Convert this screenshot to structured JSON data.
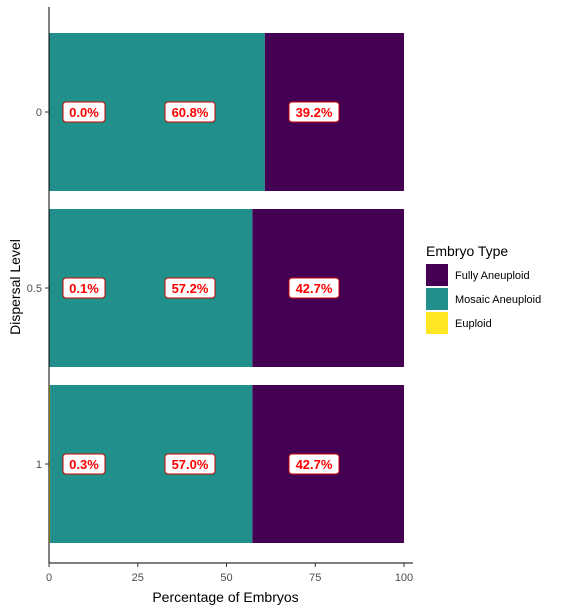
{
  "chart_data": {
    "type": "bar",
    "orientation": "horizontal",
    "stacked": true,
    "categories": [
      "0",
      "0.5",
      "1"
    ],
    "series": [
      {
        "name": "Fully Aneuploid",
        "color": "#440154",
        "values": [
          39.2,
          42.7,
          42.7
        ]
      },
      {
        "name": "Mosaic Aneuploid",
        "color": "#21908c",
        "values": [
          60.8,
          57.2,
          57.0
        ]
      },
      {
        "name": "Euploid",
        "color": "#fde725",
        "values": [
          0.0,
          0.1,
          0.3
        ]
      }
    ],
    "data_labels": [
      {
        "category": "0",
        "euploid": "0.0%",
        "mosaic": "60.8%",
        "fully": "39.2%"
      },
      {
        "category": "0.5",
        "euploid": "0.1%",
        "mosaic": "57.2%",
        "fully": "42.7%"
      },
      {
        "category": "1",
        "euploid": "0.3%",
        "mosaic": "57.0%",
        "fully": "42.7%"
      }
    ],
    "xlabel": "Percentage of Embryos",
    "ylabel": "Dispersal Level",
    "xlim": [
      0,
      100
    ],
    "xticks": [
      "0",
      "25",
      "50",
      "75",
      "100"
    ],
    "grid": false,
    "legend": {
      "title": "Embryo Type",
      "position": "right",
      "entries": [
        "Fully Aneuploid",
        "Mosaic Aneuploid",
        "Euploid"
      ]
    }
  }
}
